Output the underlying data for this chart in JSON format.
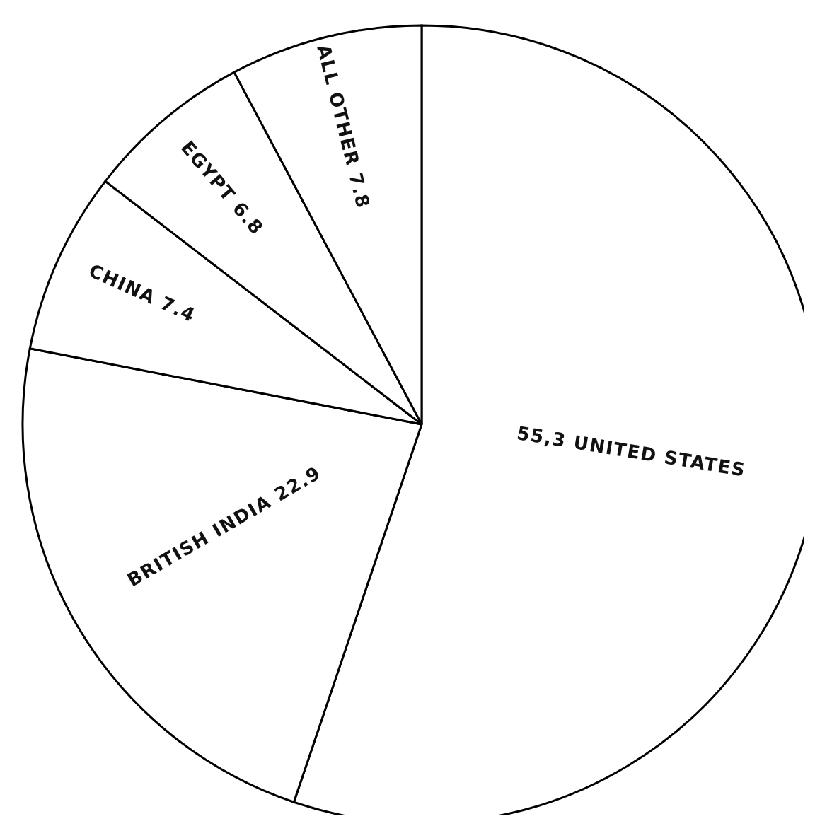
{
  "chart_data": {
    "type": "pie",
    "categories": [
      "UNITED STATES",
      "BRITISH INDIA",
      "CHINA",
      "EGYPT",
      "ALL OTHER"
    ],
    "values": [
      55.3,
      22.9,
      7.4,
      6.8,
      7.8
    ],
    "value_labels": [
      "55,3",
      "22.9",
      "7.4",
      "6.8",
      "7.8"
    ],
    "colors": [
      "#ffffff",
      "#ffffff",
      "#ffffff",
      "#ffffff",
      "#ffffff"
    ],
    "legend": false
  }
}
